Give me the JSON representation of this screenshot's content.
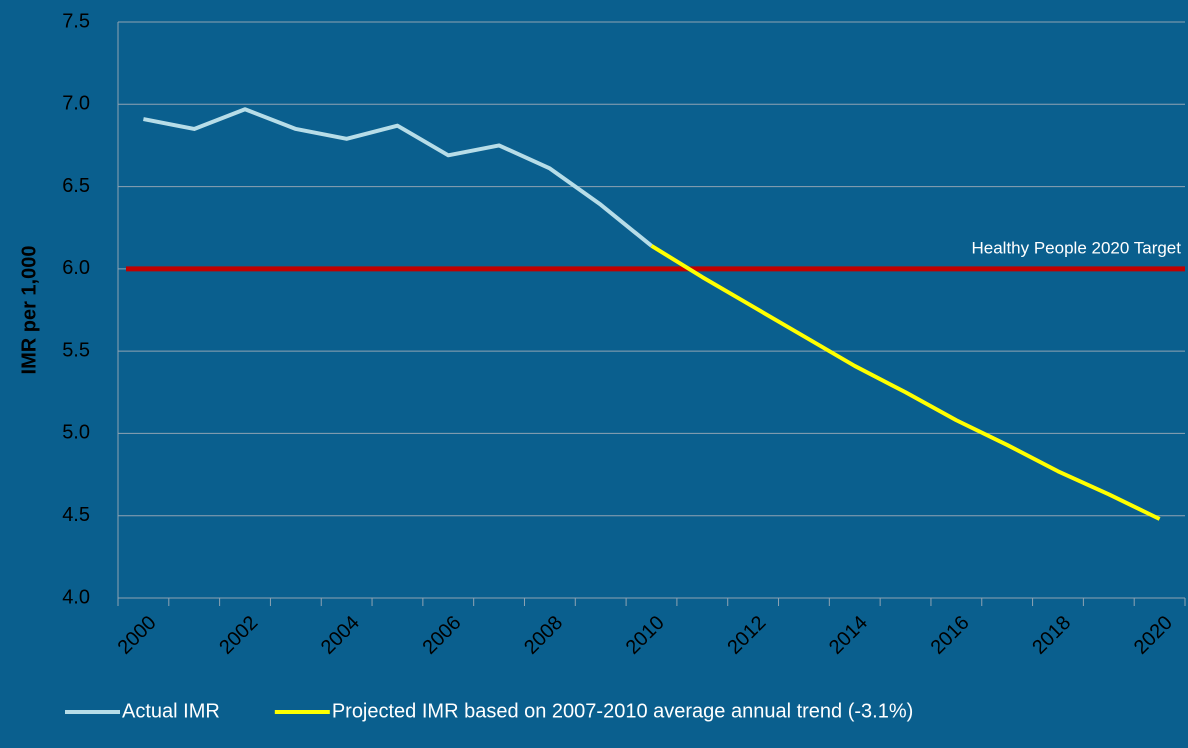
{
  "chart_data": {
    "type": "line",
    "y_label": "IMR per 1,000",
    "categories": [
      "2000",
      null,
      "2002",
      null,
      "2004",
      null,
      "2006",
      null,
      "2008",
      null,
      "2010",
      null,
      "2012",
      null,
      "2014",
      null,
      "2016",
      null,
      "2018",
      null,
      "2020"
    ],
    "series": [
      {
        "name": "Actual IMR",
        "color": "#b7dde8",
        "values": [
          6.91,
          6.85,
          6.97,
          6.85,
          6.79,
          6.87,
          6.69,
          6.75,
          6.61,
          6.39,
          6.14,
          null,
          null,
          null,
          null,
          null,
          null,
          null,
          null,
          null,
          null
        ]
      },
      {
        "name": "Projected IMR based on 2007-2010 average annual trend (-3.1%)",
        "color": "#ffff00",
        "values": [
          null,
          null,
          null,
          null,
          null,
          null,
          null,
          null,
          null,
          null,
          6.14,
          5.95,
          5.77,
          5.59,
          5.41,
          5.25,
          5.08,
          4.93,
          4.77,
          4.63,
          4.48
        ]
      }
    ],
    "target": {
      "label": "Healthy People 2020 Target",
      "value": 6.0,
      "color": "#c00000"
    },
    "ylim": [
      4.0,
      7.5
    ],
    "yticks": [
      {
        "value": 4.0,
        "label": "4.0"
      },
      4.5,
      {
        "value": 5.0,
        "label": "5.0"
      },
      5.5,
      {
        "value": 6.0,
        "label": "6.0"
      },
      6.5,
      {
        "value": 7.0,
        "label": "7.0"
      },
      7.5
    ],
    "grid": true,
    "legend": "bottom"
  }
}
